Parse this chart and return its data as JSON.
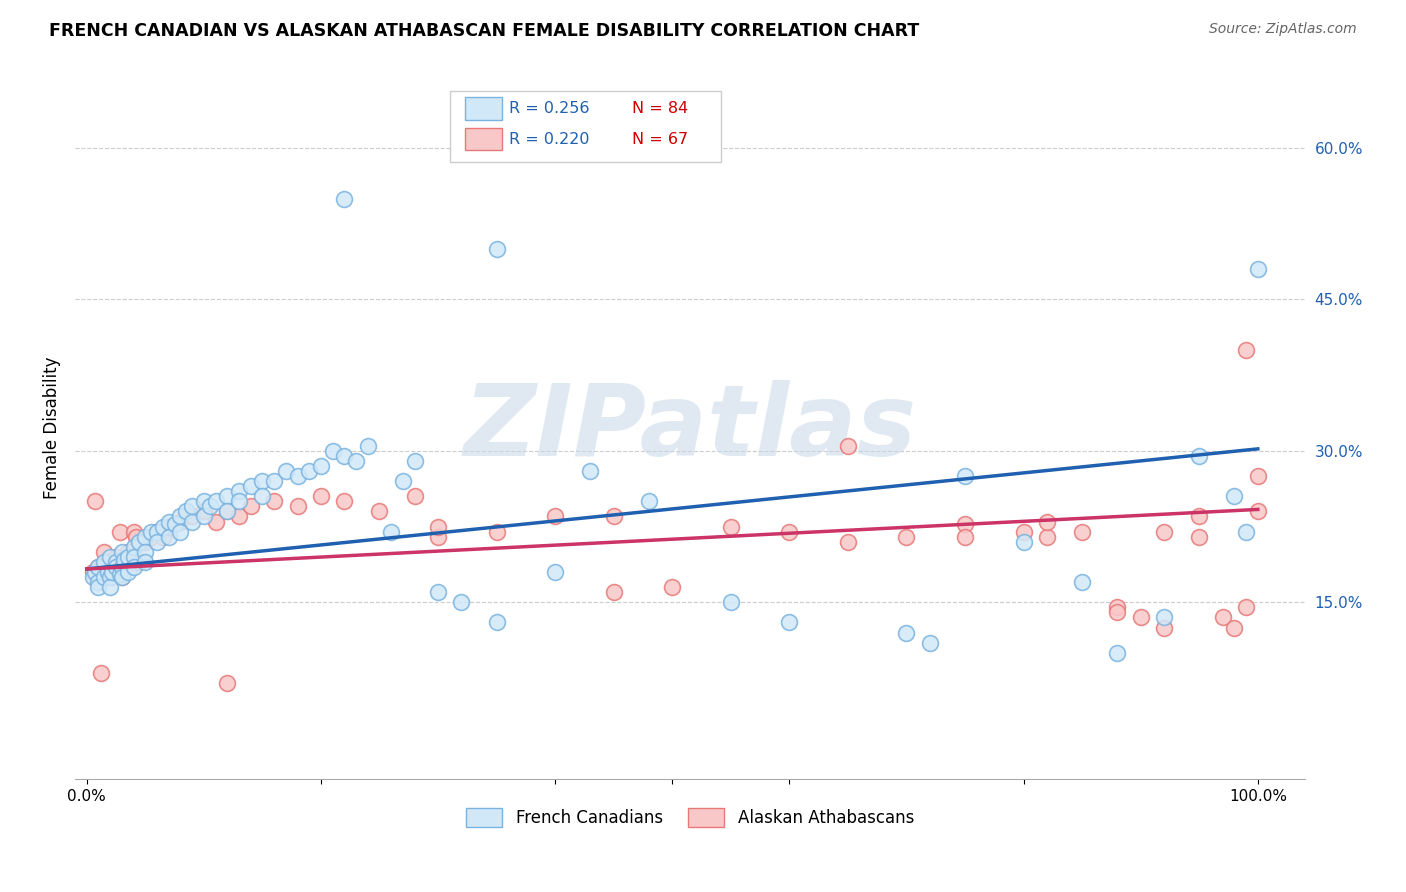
{
  "title": "FRENCH CANADIAN VS ALASKAN ATHABASCAN FEMALE DISABILITY CORRELATION CHART",
  "source": "Source: ZipAtlas.com",
  "ylabel": "Female Disability",
  "yticks": [
    "15.0%",
    "30.0%",
    "45.0%",
    "60.0%"
  ],
  "ytick_values": [
    0.15,
    0.3,
    0.45,
    0.6
  ],
  "xlim": [
    -0.01,
    1.04
  ],
  "ylim": [
    -0.025,
    0.67
  ],
  "blue_edge_color": "#7ab3e0",
  "blue_fill_color": "#d0e8f8",
  "pink_edge_color": "#e87878",
  "pink_fill_color": "#f8c8c8",
  "blue_line_color": "#2060b0",
  "pink_line_color": "#cc3366",
  "ytick_color": "#2060b0",
  "watermark_text": "ZIPatlas",
  "legend_R_color": "#2060b0",
  "legend_N_color": "#cc0000",
  "blue_line_y0": 0.183,
  "blue_line_y1": 0.302,
  "pink_line_y0": 0.183,
  "pink_line_y1": 0.242,
  "blue_x": [
    0.005,
    0.007,
    0.01,
    0.01,
    0.01,
    0.015,
    0.015,
    0.018,
    0.02,
    0.02,
    0.02,
    0.022,
    0.025,
    0.025,
    0.028,
    0.03,
    0.03,
    0.03,
    0.032,
    0.035,
    0.035,
    0.04,
    0.04,
    0.04,
    0.045,
    0.05,
    0.05,
    0.05,
    0.055,
    0.06,
    0.06,
    0.065,
    0.07,
    0.07,
    0.075,
    0.08,
    0.08,
    0.085,
    0.09,
    0.09,
    0.1,
    0.1,
    0.105,
    0.11,
    0.12,
    0.12,
    0.13,
    0.13,
    0.14,
    0.15,
    0.15,
    0.16,
    0.17,
    0.18,
    0.19,
    0.2,
    0.21,
    0.22,
    0.23,
    0.24,
    0.26,
    0.27,
    0.28,
    0.3,
    0.32,
    0.35,
    0.4,
    0.43,
    0.48,
    0.55,
    0.6,
    0.7,
    0.72,
    0.75,
    0.8,
    0.85,
    0.88,
    0.92,
    0.95,
    0.98,
    0.99,
    1.0,
    0.22,
    0.35
  ],
  "blue_y": [
    0.175,
    0.18,
    0.185,
    0.17,
    0.165,
    0.19,
    0.175,
    0.18,
    0.195,
    0.175,
    0.165,
    0.18,
    0.19,
    0.185,
    0.178,
    0.2,
    0.185,
    0.175,
    0.192,
    0.195,
    0.18,
    0.205,
    0.195,
    0.185,
    0.21,
    0.215,
    0.2,
    0.19,
    0.22,
    0.22,
    0.21,
    0.225,
    0.23,
    0.215,
    0.228,
    0.235,
    0.22,
    0.24,
    0.245,
    0.23,
    0.25,
    0.235,
    0.245,
    0.25,
    0.255,
    0.24,
    0.26,
    0.25,
    0.265,
    0.27,
    0.255,
    0.27,
    0.28,
    0.275,
    0.28,
    0.285,
    0.3,
    0.295,
    0.29,
    0.305,
    0.22,
    0.27,
    0.29,
    0.16,
    0.15,
    0.13,
    0.18,
    0.28,
    0.25,
    0.15,
    0.13,
    0.12,
    0.11,
    0.275,
    0.21,
    0.17,
    0.1,
    0.135,
    0.295,
    0.255,
    0.22,
    0.48,
    0.55,
    0.5
  ],
  "pink_x": [
    0.005,
    0.007,
    0.01,
    0.012,
    0.015,
    0.018,
    0.02,
    0.022,
    0.025,
    0.028,
    0.03,
    0.032,
    0.035,
    0.038,
    0.04,
    0.042,
    0.045,
    0.05,
    0.055,
    0.06,
    0.065,
    0.07,
    0.08,
    0.09,
    0.1,
    0.11,
    0.12,
    0.13,
    0.14,
    0.16,
    0.18,
    0.2,
    0.22,
    0.25,
    0.28,
    0.3,
    0.35,
    0.4,
    0.45,
    0.5,
    0.55,
    0.6,
    0.65,
    0.7,
    0.75,
    0.8,
    0.82,
    0.85,
    0.88,
    0.9,
    0.92,
    0.95,
    0.97,
    0.98,
    0.99,
    1.0,
    1.0,
    0.65,
    0.75,
    0.82,
    0.88,
    0.92,
    0.95,
    0.12,
    0.3,
    0.45,
    0.99
  ],
  "pink_y": [
    0.18,
    0.25,
    0.185,
    0.08,
    0.2,
    0.19,
    0.185,
    0.175,
    0.195,
    0.22,
    0.175,
    0.185,
    0.2,
    0.19,
    0.22,
    0.215,
    0.19,
    0.21,
    0.215,
    0.22,
    0.215,
    0.225,
    0.23,
    0.235,
    0.24,
    0.23,
    0.24,
    0.235,
    0.245,
    0.25,
    0.245,
    0.255,
    0.25,
    0.24,
    0.255,
    0.215,
    0.22,
    0.235,
    0.235,
    0.165,
    0.225,
    0.22,
    0.21,
    0.215,
    0.228,
    0.22,
    0.215,
    0.22,
    0.145,
    0.135,
    0.125,
    0.215,
    0.135,
    0.125,
    0.145,
    0.275,
    0.24,
    0.305,
    0.215,
    0.23,
    0.14,
    0.22,
    0.235,
    0.07,
    0.225,
    0.16,
    0.4
  ]
}
